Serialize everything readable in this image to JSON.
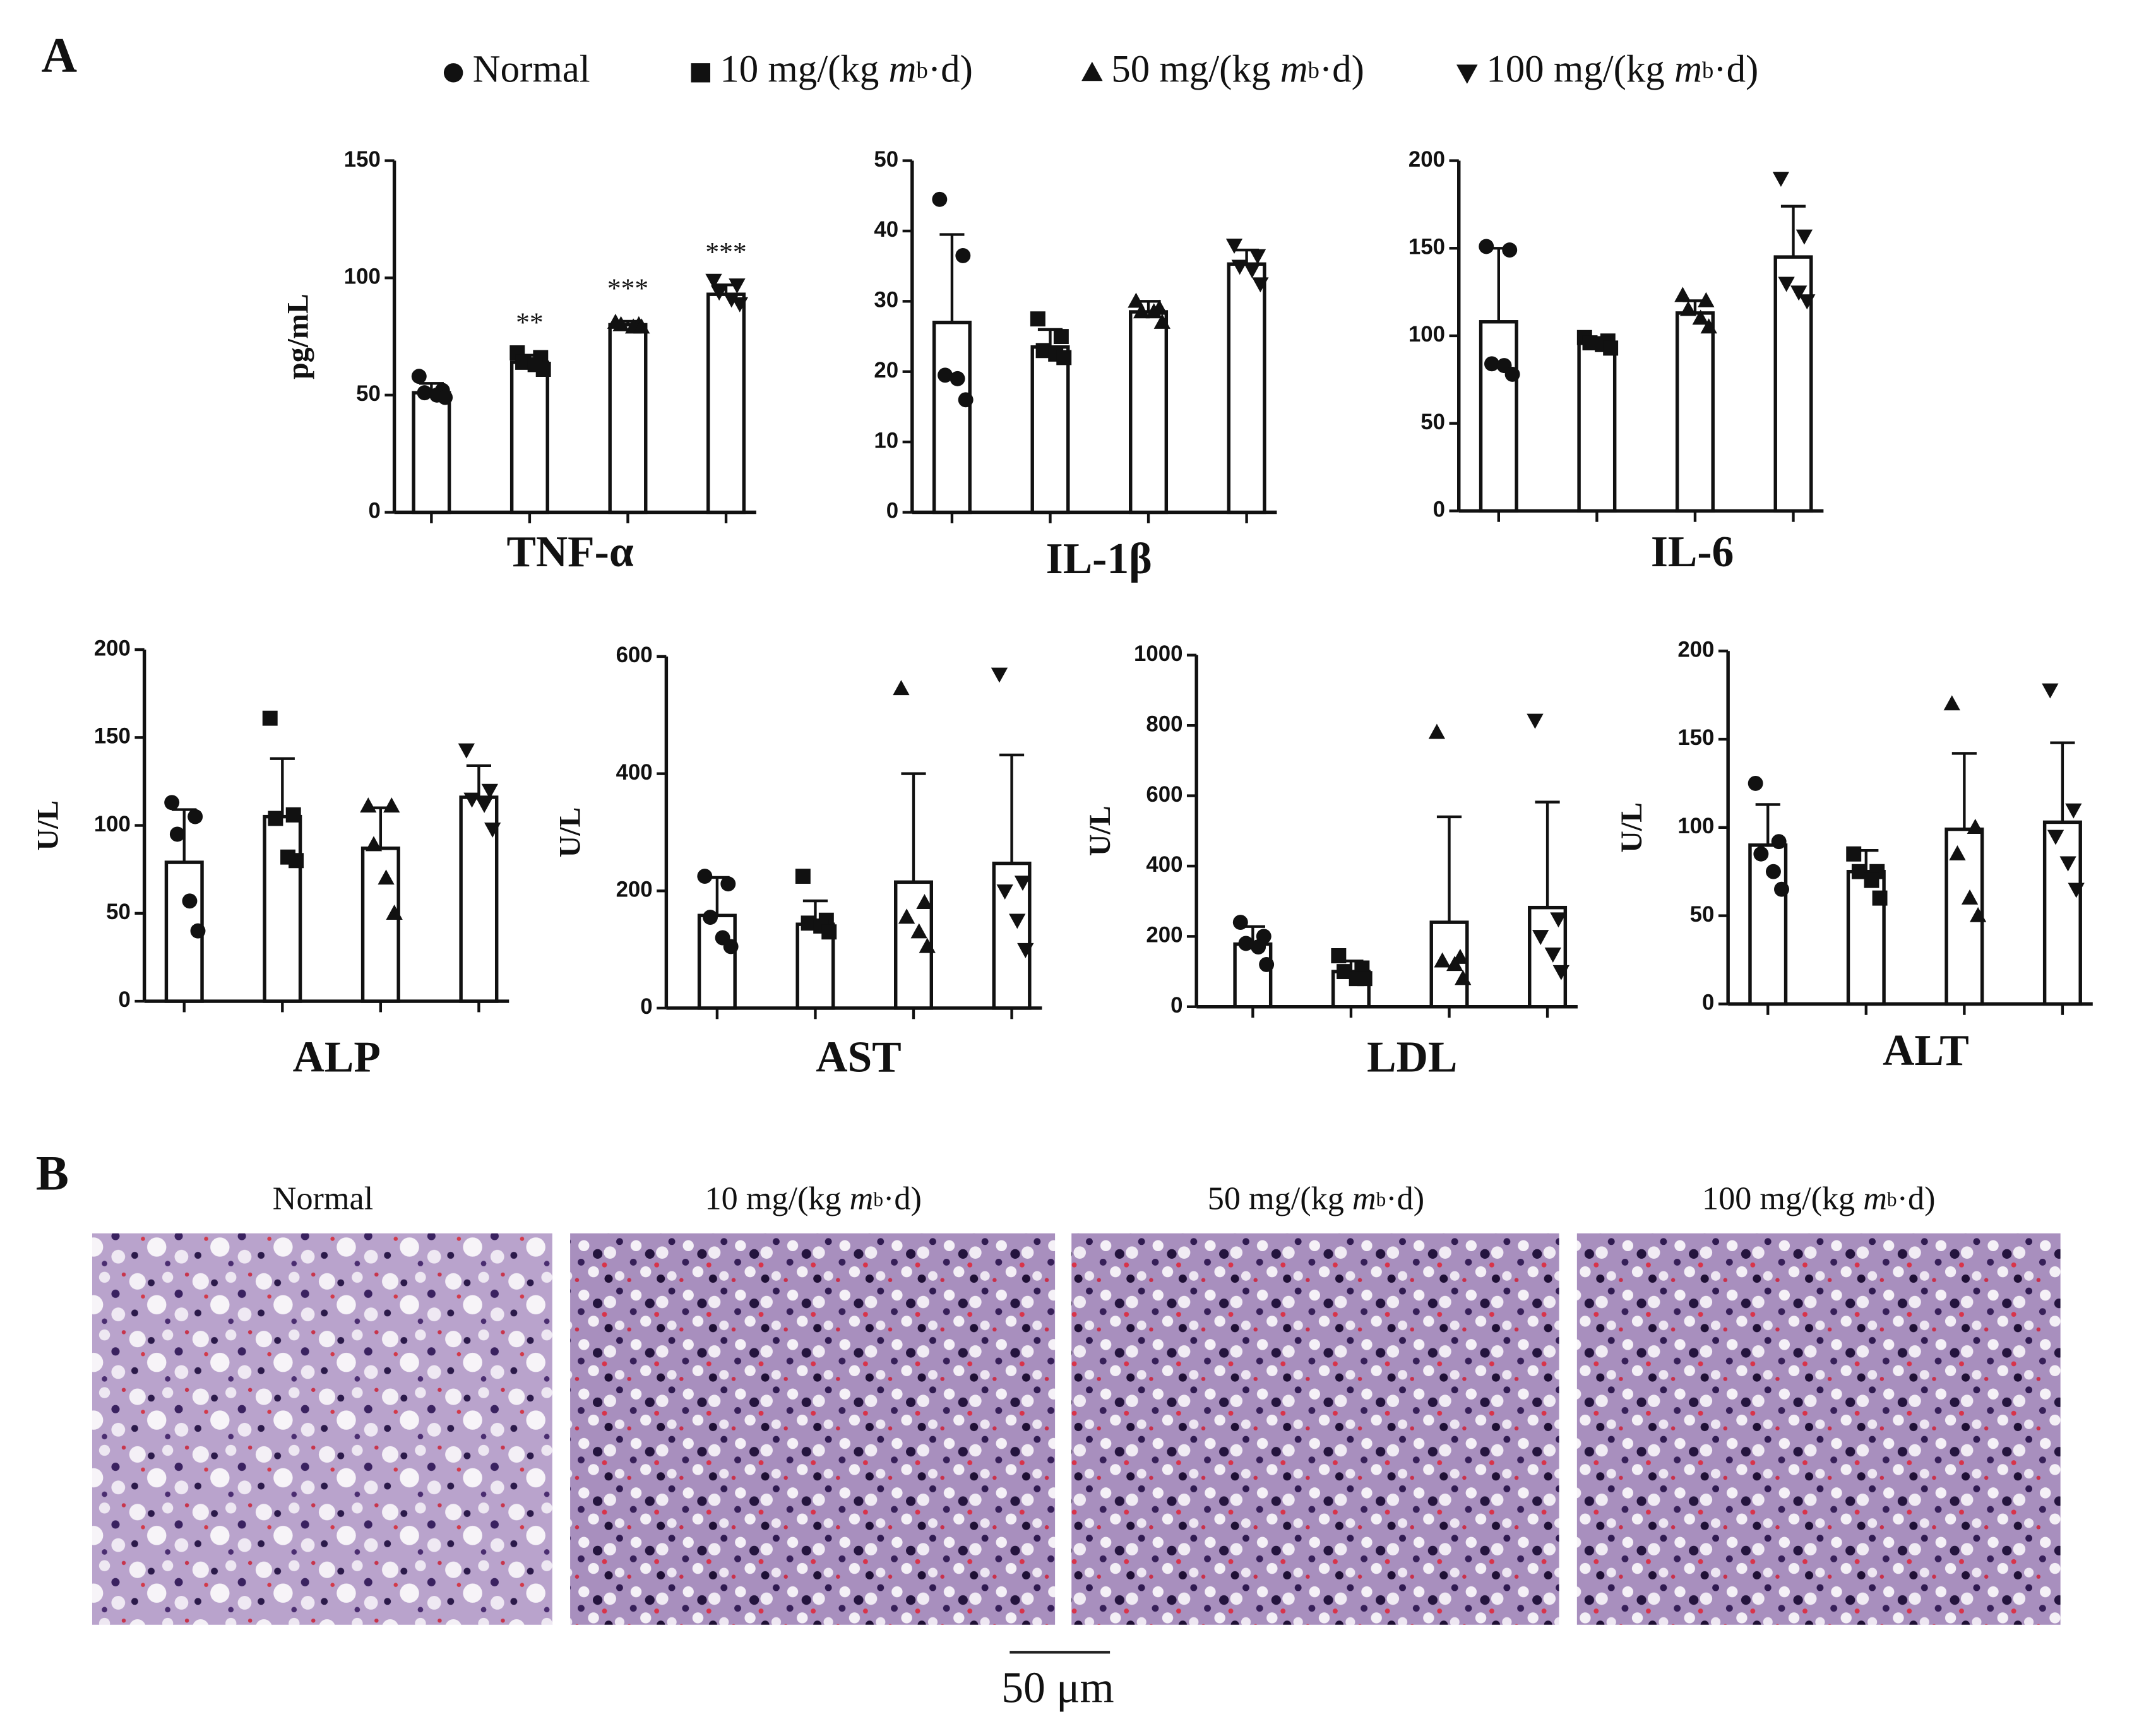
{
  "panel_a_label": "A",
  "panel_b_label": "B",
  "legend": [
    {
      "name": "Normal",
      "marker": "circle"
    },
    {
      "name": "10 mg/(kg mb·d)",
      "marker": "square"
    },
    {
      "name": "50 mg/(kg mb·d)",
      "marker": "triangle"
    },
    {
      "name": "100 mg/(kg mb·d)",
      "marker": "triangle-down"
    }
  ],
  "chart_data": [
    {
      "type": "bar",
      "title": "TNF-α",
      "ylabel": "pg/mL",
      "ylim": [
        0,
        150
      ],
      "yticks": [
        0,
        50,
        100,
        150
      ],
      "values": [
        51,
        64,
        80,
        93
      ],
      "errors": [
        4,
        3,
        1.5,
        4
      ],
      "points": [
        [
          58,
          52,
          51,
          50,
          49
        ],
        [
          68,
          66,
          64,
          63,
          61
        ],
        [
          81,
          80,
          80,
          79,
          79
        ],
        [
          99,
          97,
          94,
          91,
          89
        ]
      ],
      "annotations": [
        null,
        "**",
        "***",
        "***"
      ]
    },
    {
      "type": "bar",
      "title": "IL-1β",
      "ylim": [
        0,
        50
      ],
      "yticks": [
        0,
        10,
        20,
        30,
        40,
        50
      ],
      "values": [
        27,
        23.5,
        28.5,
        35.3
      ],
      "errors": [
        12.5,
        2.5,
        1.5,
        2
      ],
      "points": [
        [
          44.5,
          36.5,
          19.5,
          19,
          16
        ],
        [
          27.5,
          25,
          23,
          22.5,
          22
        ],
        [
          30,
          29,
          28.5,
          28.5,
          27
        ],
        [
          38,
          36.5,
          35,
          34.5,
          32.5
        ]
      ]
    },
    {
      "type": "bar",
      "title": "IL-6",
      "ylim": [
        0,
        200
      ],
      "yticks": [
        0,
        50,
        100,
        150,
        200
      ],
      "values": [
        108,
        96,
        113,
        145
      ],
      "errors": [
        42,
        3,
        7,
        29
      ],
      "points": [
        [
          151,
          149,
          84,
          83,
          78
        ],
        [
          99,
          97,
          96,
          95,
          93
        ],
        [
          123,
          120,
          115,
          110,
          105
        ],
        [
          190,
          157,
          130,
          125,
          120
        ]
      ]
    },
    {
      "type": "bar",
      "title": "ALP",
      "ylabel": "U/L",
      "ylim": [
        0,
        200
      ],
      "yticks": [
        0,
        50,
        100,
        150,
        200
      ],
      "values": [
        79,
        105,
        87,
        116
      ],
      "errors": [
        30,
        33,
        23,
        18
      ],
      "points": [
        [
          113,
          105,
          95,
          57,
          40
        ],
        [
          161,
          106,
          104,
          82,
          80
        ],
        [
          111,
          111,
          89,
          70,
          50
        ],
        [
          143,
          120,
          115,
          112,
          98
        ]
      ]
    },
    {
      "type": "bar",
      "title": "AST",
      "ylabel": "U/L",
      "ylim": [
        0,
        600
      ],
      "yticks": [
        0,
        200,
        400,
        600
      ],
      "values": [
        158,
        143,
        215,
        247
      ],
      "errors": [
        65,
        40,
        185,
        185
      ],
      "points": [
        [
          225,
          212,
          155,
          120,
          105
        ],
        [
          225,
          150,
          145,
          140,
          130
        ],
        [
          545,
          180,
          155,
          130,
          105
        ],
        [
          570,
          215,
          200,
          150,
          100
        ]
      ]
    },
    {
      "type": "bar",
      "title": "LDL",
      "ylabel": "U/L",
      "ylim": [
        0,
        1000
      ],
      "yticks": [
        0,
        200,
        400,
        600,
        800,
        1000
      ],
      "values": [
        178,
        100,
        240,
        282
      ],
      "errors": [
        50,
        30,
        300,
        300
      ],
      "points": [
        [
          240,
          200,
          180,
          170,
          120
        ],
        [
          145,
          110,
          100,
          80,
          80
        ],
        [
          780,
          140,
          130,
          120,
          80
        ],
        [
          815,
          250,
          200,
          150,
          100
        ]
      ]
    },
    {
      "type": "bar",
      "title": "ALT",
      "ylabel": "U/L",
      "ylim": [
        0,
        200
      ],
      "yticks": [
        0,
        50,
        100,
        150,
        200
      ],
      "values": [
        90,
        75,
        99,
        103
      ],
      "errors": [
        23,
        12,
        43,
        45
      ],
      "points": [
        [
          125,
          92,
          85,
          75,
          65
        ],
        [
          85,
          75,
          75,
          70,
          60
        ],
        [
          170,
          100,
          85,
          60,
          50
        ],
        [
          178,
          110,
          95,
          80,
          65
        ]
      ]
    }
  ],
  "histology": {
    "labels": [
      "Normal",
      "10 mg/(kg mb·d)",
      "50 mg/(kg mb·d)",
      "100 mg/(kg mb·d)"
    ],
    "scale_bar": "50 μm"
  }
}
